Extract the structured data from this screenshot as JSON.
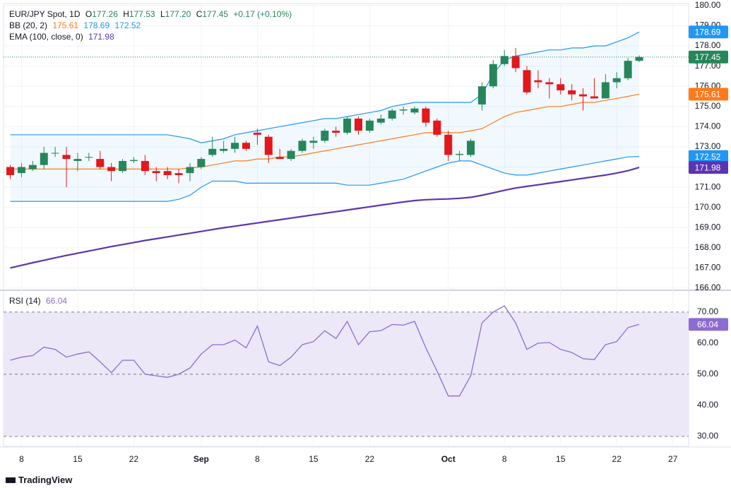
{
  "header": {
    "title": "EUR/JPY Spot, 1D",
    "ohlc": [
      [
        "O",
        "177.26"
      ],
      [
        "H",
        "177.53"
      ],
      [
        "L",
        "177.20"
      ],
      [
        "C",
        "177.45"
      ]
    ],
    "change": "+0.17 (+0.10%)"
  },
  "footer": {
    "brand": "TradingView"
  },
  "chart_data": [
    {
      "type": "candlestick",
      "x": [
        0,
        1,
        2,
        3,
        4,
        5,
        6,
        7,
        8,
        9,
        10,
        11,
        12,
        13,
        14,
        15,
        16,
        17,
        18,
        19,
        20,
        21,
        22,
        23,
        24,
        25,
        26,
        27,
        28,
        29,
        30,
        31,
        32,
        33,
        34,
        35,
        36,
        37,
        38,
        39,
        40,
        41,
        42,
        43,
        44,
        45,
        46,
        47,
        48,
        49,
        50,
        51,
        52,
        53,
        54,
        55,
        56
      ],
      "open": [
        172.0,
        171.7,
        171.9,
        172.1,
        172.7,
        172.6,
        172.3,
        172.5,
        172.4,
        172.0,
        171.8,
        172.3,
        172.3,
        171.8,
        171.8,
        171.7,
        171.7,
        172.0,
        172.6,
        172.8,
        172.9,
        173.2,
        173.7,
        173.5,
        172.5,
        172.4,
        172.8,
        173.2,
        173.3,
        173.8,
        173.7,
        174.4,
        173.8,
        174.2,
        174.4,
        174.8,
        174.7,
        174.9,
        174.3,
        173.6,
        172.6,
        172.6,
        175.1,
        176.0,
        177.1,
        177.5,
        176.8,
        176.3,
        176.2,
        176.1,
        175.8,
        175.6,
        175.5,
        175.4,
        176.2,
        176.4,
        177.26
      ],
      "high": [
        172.1,
        172.2,
        172.3,
        173.0,
        173.0,
        173.0,
        172.7,
        172.7,
        172.8,
        172.2,
        172.4,
        172.5,
        172.6,
        172.0,
        172.0,
        171.9,
        172.2,
        172.5,
        173.5,
        173.3,
        173.5,
        173.3,
        173.9,
        173.6,
        172.9,
        172.9,
        173.4,
        173.5,
        173.9,
        174.0,
        174.5,
        174.5,
        174.4,
        174.6,
        174.9,
        175.0,
        175.0,
        175.0,
        174.4,
        173.8,
        172.8,
        173.4,
        176.2,
        177.3,
        177.8,
        177.9,
        177.0,
        176.8,
        176.4,
        176.4,
        176.1,
        175.9,
        176.4,
        176.6,
        176.7,
        177.4,
        177.53
      ],
      "low": [
        171.4,
        171.5,
        171.8,
        171.9,
        172.5,
        171.0,
        171.8,
        172.3,
        171.9,
        171.3,
        171.7,
        172.2,
        171.6,
        171.3,
        171.4,
        171.2,
        171.3,
        171.9,
        172.5,
        172.7,
        172.7,
        172.8,
        173.1,
        172.2,
        172.4,
        172.3,
        172.7,
        172.9,
        173.2,
        173.5,
        173.6,
        173.6,
        173.7,
        174.1,
        174.3,
        174.6,
        174.6,
        174.0,
        173.5,
        172.3,
        172.3,
        172.5,
        174.8,
        175.9,
        177.0,
        176.7,
        175.6,
        175.9,
        175.4,
        175.6,
        175.3,
        174.8,
        175.4,
        175.4,
        175.9,
        176.3,
        177.2
      ],
      "close": [
        171.6,
        172.0,
        172.1,
        172.7,
        172.7,
        172.4,
        172.4,
        172.5,
        172.0,
        171.8,
        172.3,
        172.35,
        171.8,
        171.7,
        171.6,
        171.6,
        172.0,
        172.4,
        172.9,
        172.9,
        173.2,
        172.9,
        173.6,
        172.6,
        172.4,
        172.8,
        173.3,
        173.3,
        173.8,
        173.7,
        174.4,
        173.8,
        174.3,
        174.4,
        174.8,
        174.85,
        174.9,
        174.2,
        173.6,
        172.6,
        172.65,
        173.3,
        176.0,
        177.1,
        177.5,
        176.9,
        175.7,
        176.2,
        176.1,
        175.8,
        175.6,
        175.5,
        175.4,
        176.2,
        176.4,
        177.26,
        177.45
      ],
      "up_color": "#26865a",
      "down_color": "#e4171b",
      "xlim": [
        -0.6,
        60.4
      ],
      "xticks": [
        {
          "value": 1,
          "label": "8"
        },
        {
          "value": 6,
          "label": "15"
        },
        {
          "value": 11,
          "label": "22"
        },
        {
          "value": 17,
          "label": "Sep"
        },
        {
          "value": 22,
          "label": "8"
        },
        {
          "value": 27,
          "label": "15"
        },
        {
          "value": 32,
          "label": "22"
        },
        {
          "value": 39,
          "label": "Oct"
        },
        {
          "value": 44,
          "label": "8"
        },
        {
          "value": 49,
          "label": "15"
        },
        {
          "value": 54,
          "label": "22"
        },
        {
          "value": 59,
          "label": "27"
        }
      ],
      "ylim": [
        165.93,
        180.1
      ],
      "yticks": [
        {
          "value": 166,
          "label": "166.00"
        },
        {
          "value": 167,
          "label": "167.00"
        },
        {
          "value": 168,
          "label": "168.00"
        },
        {
          "value": 169,
          "label": "169.00"
        },
        {
          "value": 170,
          "label": "170.00"
        },
        {
          "value": 171,
          "label": "171.00"
        },
        {
          "value": 172,
          "label": "172.00"
        },
        {
          "value": 173,
          "label": "173.00"
        },
        {
          "value": 174,
          "label": "174.00"
        },
        {
          "value": 175,
          "label": "175.00"
        },
        {
          "value": 176,
          "label": "176.00"
        },
        {
          "value": 177,
          "label": "177.00"
        },
        {
          "value": 178,
          "label": "178.00"
        },
        {
          "value": 179,
          "label": "179.00"
        },
        {
          "value": 180,
          "label": "180.00"
        }
      ],
      "grid": true,
      "indicators": {
        "bb": {
          "label": "BB (20, 2)",
          "fill": "rgba(33,150,243,0.06)",
          "basis": {
            "color": "#ff7a1a",
            "values": [
              171.9,
              171.9,
              171.9,
              171.9,
              171.9,
              171.9,
              171.9,
              171.9,
              171.9,
              171.9,
              171.9,
              171.9,
              171.9,
              171.9,
              171.9,
              171.9,
              171.95,
              172.0,
              172.1,
              172.2,
              172.3,
              172.3,
              172.4,
              172.4,
              172.5,
              172.5,
              172.6,
              172.7,
              172.8,
              172.9,
              173.0,
              173.1,
              173.2,
              173.3,
              173.4,
              173.5,
              173.6,
              173.7,
              173.7,
              173.7,
              173.7,
              173.8,
              173.9,
              174.2,
              174.5,
              174.7,
              174.8,
              174.9,
              175.0,
              175.0,
              175.1,
              175.2,
              175.2,
              175.3,
              175.4,
              175.5,
              175.61
            ]
          },
          "upper": {
            "color": "#2196f3",
            "values": [
              173.6,
              173.6,
              173.6,
              173.6,
              173.6,
              173.6,
              173.6,
              173.6,
              173.6,
              173.6,
              173.6,
              173.6,
              173.6,
              173.6,
              173.6,
              173.5,
              173.4,
              173.2,
              173.3,
              173.4,
              173.6,
              173.7,
              173.8,
              173.9,
              174.0,
              174.1,
              174.2,
              174.3,
              174.4,
              174.4,
              174.5,
              174.6,
              174.7,
              174.8,
              175.0,
              175.1,
              175.2,
              175.2,
              175.2,
              175.2,
              175.2,
              175.2,
              175.6,
              176.6,
              177.3,
              177.5,
              177.6,
              177.7,
              177.8,
              177.8,
              177.9,
              177.9,
              178.0,
              178.0,
              178.2,
              178.4,
              178.69
            ]
          },
          "lower": {
            "color": "#2196f3",
            "values": [
              170.3,
              170.3,
              170.3,
              170.3,
              170.3,
              170.3,
              170.3,
              170.3,
              170.3,
              170.3,
              170.3,
              170.3,
              170.3,
              170.3,
              170.3,
              170.4,
              170.6,
              171.0,
              171.3,
              171.3,
              171.3,
              171.2,
              171.2,
              171.2,
              171.2,
              171.2,
              171.2,
              171.2,
              171.2,
              171.2,
              171.1,
              171.1,
              171.1,
              171.2,
              171.3,
              171.4,
              171.6,
              171.8,
              172.0,
              172.2,
              172.3,
              172.3,
              172.1,
              171.9,
              171.7,
              171.6,
              171.6,
              171.7,
              171.8,
              171.9,
              172.0,
              172.1,
              172.2,
              172.3,
              172.4,
              172.5,
              172.52
            ]
          }
        },
        "ema": {
          "label": "EMA (100, close, 0)",
          "color": "#5b35b0",
          "values": [
            167.0,
            167.13,
            167.26,
            167.38,
            167.5,
            167.62,
            167.73,
            167.84,
            167.95,
            168.06,
            168.16,
            168.26,
            168.36,
            168.45,
            168.54,
            168.63,
            168.72,
            168.81,
            168.9,
            168.99,
            169.07,
            169.15,
            169.23,
            169.31,
            169.39,
            169.47,
            169.55,
            169.63,
            169.71,
            169.79,
            169.87,
            169.95,
            170.03,
            170.11,
            170.19,
            170.27,
            170.34,
            170.38,
            170.4,
            170.42,
            170.45,
            170.5,
            170.6,
            170.72,
            170.85,
            170.96,
            171.04,
            171.12,
            171.2,
            171.28,
            171.36,
            171.44,
            171.52,
            171.6,
            171.7,
            171.82,
            171.98
          ]
        }
      }
    },
    {
      "type": "line",
      "label": "RSI (14)",
      "color": "#8c6cd0",
      "band_color": "#ede8f7",
      "values": [
        54.5,
        55.5,
        56,
        58.7,
        58,
        55.5,
        56.5,
        57.2,
        54,
        50.5,
        54.5,
        54.5,
        50,
        49.5,
        49,
        50,
        52,
        56.5,
        59.5,
        59.5,
        61,
        58.5,
        65.5,
        54,
        52.8,
        55.5,
        59.5,
        60.5,
        64,
        61.5,
        67,
        59.5,
        63.7,
        64,
        66,
        65.8,
        67,
        58.5,
        51,
        43,
        43,
        49.5,
        66.5,
        70,
        72,
        66.5,
        58,
        60,
        60.2,
        58,
        57,
        55,
        54.7,
        59.5,
        60.5,
        65,
        66.04
      ],
      "ylim": [
        26.8,
        76.8
      ],
      "yticks": [
        {
          "value": 30,
          "label": "30.00"
        },
        {
          "value": 40,
          "label": "40.00"
        },
        {
          "value": 50,
          "label": "50.00"
        },
        {
          "value": 60,
          "label": "60.00"
        },
        {
          "value": 70,
          "label": "70.00"
        }
      ],
      "levels": [
        30,
        50,
        70
      ]
    }
  ]
}
